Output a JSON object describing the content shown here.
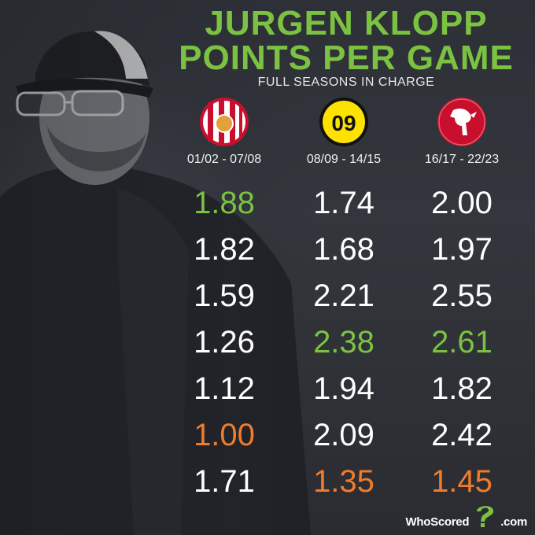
{
  "title_line1": "JURGEN KLOPP",
  "title_line2": "POINTS PER GAME",
  "subtitle": "FULL SEASONS IN CHARGE",
  "colors": {
    "title": "#7cc242",
    "best": "#7cc242",
    "worst": "#f07b2c",
    "normal": "#ffffff"
  },
  "chart_data": {
    "type": "table",
    "columns": [
      {
        "label": "01/02 - 07/08",
        "badge": "mainz-crest-icon",
        "values": [
          "1.88",
          "1.82",
          "1.59",
          "1.26",
          "1.12",
          "1.00",
          "1.71"
        ],
        "best_index": 0,
        "worst_index": 5
      },
      {
        "label": "08/09 - 14/15",
        "badge": "dortmund-crest-icon",
        "badge_text": "09",
        "values": [
          "1.74",
          "1.68",
          "2.21",
          "2.38",
          "1.94",
          "2.09",
          "1.35"
        ],
        "best_index": 3,
        "worst_index": 6
      },
      {
        "label": "16/17 - 22/23",
        "badge": "liverbird-crest-icon",
        "values": [
          "2.00",
          "1.97",
          "2.55",
          "2.61",
          "1.82",
          "2.42",
          "1.45"
        ],
        "best_index": 3,
        "worst_index": 6
      }
    ]
  },
  "brand": {
    "text": "WhoScored",
    "suffix": ".com",
    "icon": "question-mark-icon"
  }
}
